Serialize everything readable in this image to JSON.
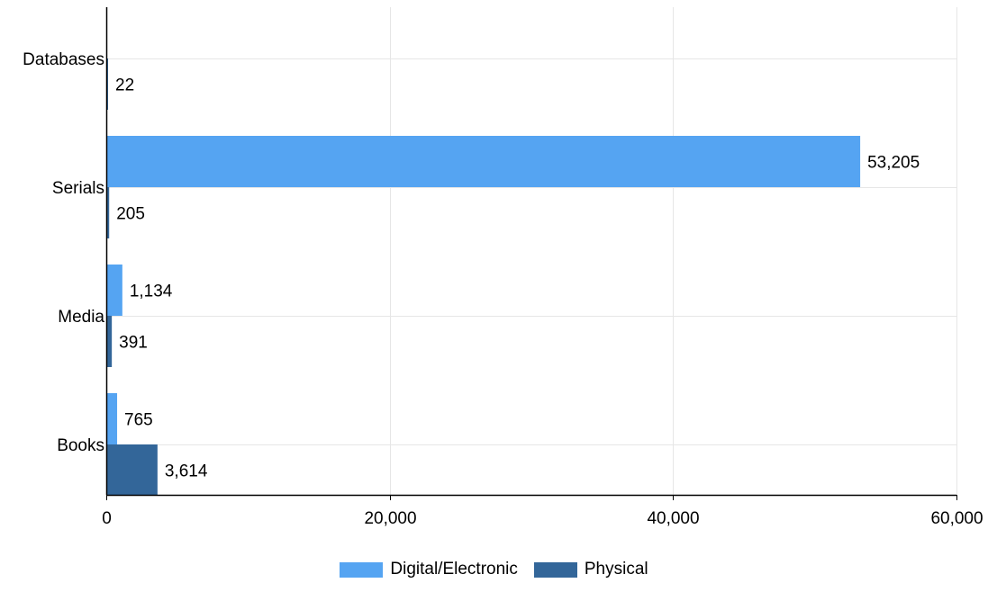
{
  "chart_data": {
    "type": "bar",
    "orientation": "horizontal",
    "categories": [
      "Databases",
      "Serials",
      "Media",
      "Books"
    ],
    "series": [
      {
        "name": "Digital/Electronic",
        "color": "#55a4f2",
        "values": [
          null,
          53205,
          1134,
          765
        ],
        "labels": [
          "",
          "53,205",
          "1,134",
          "765"
        ]
      },
      {
        "name": "Physical",
        "color": "#336699",
        "values": [
          22,
          205,
          391,
          3614
        ],
        "labels": [
          "22",
          "205",
          "391",
          "3,614"
        ]
      }
    ],
    "xlim": [
      0,
      60000
    ],
    "xticks": [
      0,
      20000,
      40000,
      60000
    ],
    "xtick_labels": [
      "0",
      "20,000",
      "40,000",
      "60,000"
    ],
    "grid": true,
    "legend_position": "bottom"
  }
}
